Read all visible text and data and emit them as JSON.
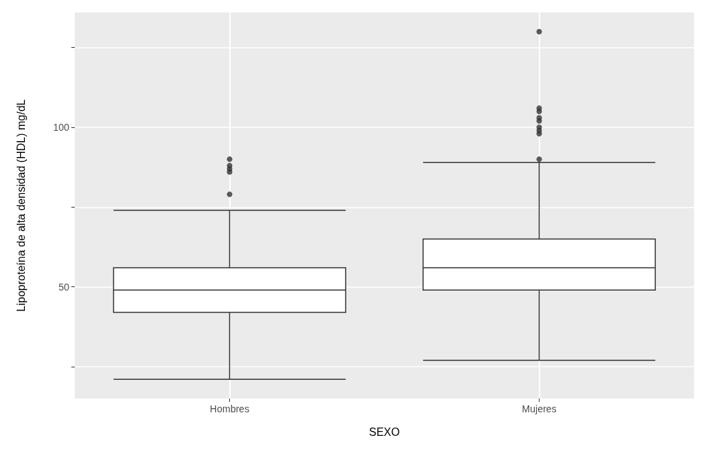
{
  "chart_data": {
    "type": "box",
    "xlabel": "SEXO",
    "ylabel": "Lipoproteína de alta densidad (HDL) mg/dL",
    "categories": [
      "Hombres",
      "Mujeres"
    ],
    "boxes": [
      {
        "low": 21,
        "q1": 42,
        "median": 49,
        "q3": 56,
        "high": 74,
        "outliers": [
          79,
          86,
          87,
          88,
          90
        ]
      },
      {
        "low": 27,
        "q1": 49,
        "median": 56,
        "q3": 65,
        "high": 89,
        "outliers": [
          90,
          98,
          99,
          100,
          102,
          103,
          105,
          106,
          130
        ]
      }
    ],
    "color": "#333333",
    "ylim": [
      15,
      136
    ],
    "yticks": [
      {
        "value": 25,
        "label": null
      },
      50,
      {
        "value": 75,
        "label": null
      },
      100,
      {
        "value": 125,
        "label": null
      }
    ],
    "grid": true,
    "marker": "circle"
  }
}
